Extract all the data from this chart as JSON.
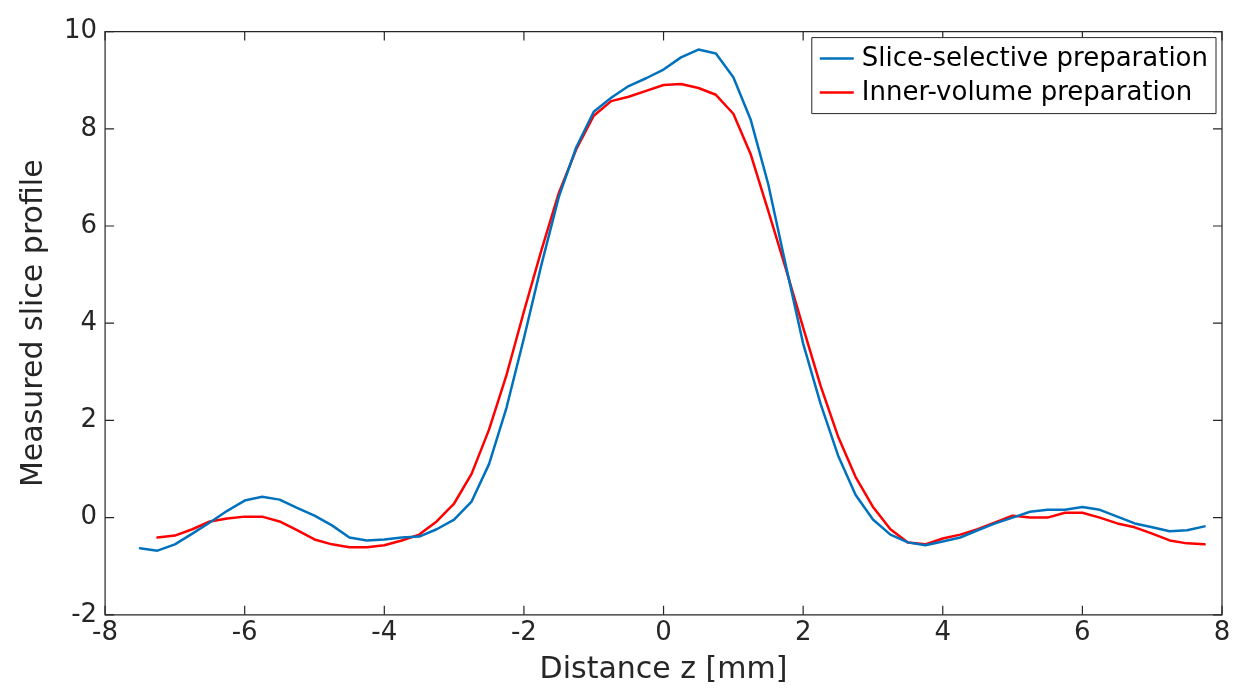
{
  "chart_data": {
    "type": "line",
    "xlabel": "Distance z [mm]",
    "ylabel": "Measured slice profile",
    "xlim": [
      -8,
      8
    ],
    "ylim": [
      -2,
      10
    ],
    "xticks": [
      -8,
      -6,
      -4,
      -2,
      0,
      2,
      4,
      6,
      8
    ],
    "yticks": [
      -2,
      0,
      2,
      4,
      6,
      8,
      10
    ],
    "grid": false,
    "legend": "top right",
    "marker": "none",
    "line_style": "solid",
    "series": [
      {
        "name": "Slice-selective preparation",
        "color": "#0072bd",
        "x": [
          -7.5,
          -7.25,
          -7,
          -6.75,
          -6.5,
          -6.25,
          -6,
          -5.75,
          -5.5,
          -5.25,
          -5,
          -4.75,
          -4.5,
          -4.25,
          -4,
          -3.75,
          -3.5,
          -3.25,
          -3,
          -2.75,
          -2.5,
          -2.25,
          -2,
          -1.75,
          -1.5,
          -1.25,
          -1,
          -0.75,
          -0.5,
          -0.25,
          0,
          0.25,
          0.5,
          0.75,
          1,
          1.25,
          1.5,
          1.75,
          2,
          2.25,
          2.5,
          2.75,
          3,
          3.25,
          3.5,
          3.75,
          4,
          4.25,
          4.5,
          4.75,
          5,
          5.25,
          5.5,
          5.75,
          6,
          6.25,
          6.5,
          6.75,
          7,
          7.25,
          7.5,
          7.75
        ],
        "values": [
          -0.63,
          -0.68,
          -0.55,
          -0.33,
          -0.1,
          0.14,
          0.35,
          0.43,
          0.37,
          0.2,
          0.04,
          -0.16,
          -0.41,
          -0.47,
          -0.45,
          -0.41,
          -0.39,
          -0.24,
          -0.04,
          0.33,
          1.1,
          2.26,
          3.69,
          5.2,
          6.6,
          7.62,
          8.35,
          8.64,
          8.88,
          9.04,
          9.22,
          9.47,
          9.63,
          9.55,
          9.06,
          8.18,
          6.86,
          5.2,
          3.58,
          2.34,
          1.28,
          0.47,
          -0.04,
          -0.35,
          -0.51,
          -0.57,
          -0.49,
          -0.41,
          -0.26,
          -0.12,
          0,
          0.12,
          0.16,
          0.16,
          0.22,
          0.16,
          0.02,
          -0.12,
          -0.2,
          -0.28,
          -0.26,
          -0.18
        ]
      },
      {
        "name": "Inner-volume preparation",
        "color": "#ff0000",
        "x": [
          -7.25,
          -7,
          -6.75,
          -6.5,
          -6.25,
          -6,
          -5.75,
          -5.5,
          -5.25,
          -5,
          -4.75,
          -4.5,
          -4.25,
          -4,
          -3.75,
          -3.5,
          -3.25,
          -3,
          -2.75,
          -2.5,
          -2.25,
          -2,
          -1.75,
          -1.5,
          -1.25,
          -1,
          -0.75,
          -0.5,
          -0.25,
          0,
          0.25,
          0.5,
          0.75,
          1,
          1.25,
          1.5,
          1.75,
          2,
          2.25,
          2.5,
          2.75,
          3,
          3.25,
          3.5,
          3.75,
          4,
          4.25,
          4.5,
          4.75,
          5,
          5.25,
          5.5,
          5.75,
          6,
          6.25,
          6.5,
          6.75,
          7,
          7.25,
          7.5,
          7.75
        ],
        "values": [
          -0.41,
          -0.37,
          -0.24,
          -0.08,
          -0.02,
          0.02,
          0.02,
          -0.08,
          -0.26,
          -0.45,
          -0.55,
          -0.61,
          -0.61,
          -0.57,
          -0.47,
          -0.35,
          -0.08,
          0.29,
          0.9,
          1.81,
          2.93,
          4.24,
          5.5,
          6.68,
          7.58,
          8.27,
          8.57,
          8.66,
          8.78,
          8.9,
          8.92,
          8.84,
          8.7,
          8.31,
          7.47,
          6.31,
          5.13,
          3.91,
          2.71,
          1.67,
          0.84,
          0.22,
          -0.24,
          -0.51,
          -0.55,
          -0.43,
          -0.35,
          -0.24,
          -0.1,
          0.04,
          0,
          0,
          0.1,
          0.1,
          0,
          -0.12,
          -0.2,
          -0.33,
          -0.47,
          -0.53,
          -0.55
        ]
      }
    ]
  }
}
